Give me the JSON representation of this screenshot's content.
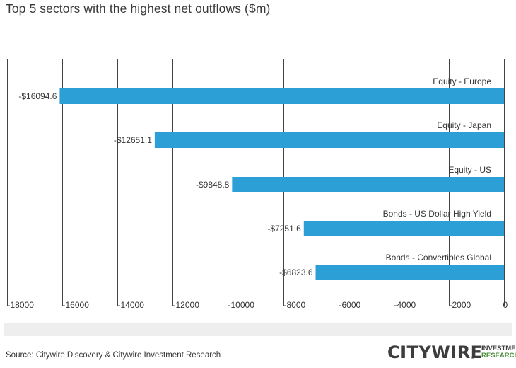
{
  "title": "Top 5 sectors with the highest net outflows ($m)",
  "source": "Source: Citywire Discovery & Citywire Investment Research",
  "logo": {
    "brand": "CITYWIRE",
    "sub_line1": "INVESTMENT",
    "sub_line2": "RESEARCH"
  },
  "colors": {
    "bar": "#2b9fd6",
    "gridline": "#444444",
    "text": "#333333"
  },
  "chart_data": {
    "type": "bar",
    "orientation": "horizontal",
    "title": "Top 5 sectors with the highest net outflows ($m)",
    "categories": [
      "Equity - Europe",
      "Equity - Japan",
      "Equity - US",
      "Bonds - US Dollar High Yield",
      "Bonds - Convertibles Global"
    ],
    "values": [
      -16094.6,
      -12651.1,
      -9848.8,
      -7251.6,
      -6823.6
    ],
    "data_labels": [
      "-$16094.6",
      "-$12651.1",
      "-$9848.8",
      "-$7251.6",
      "-$6823.6"
    ],
    "xlim": [
      -18000,
      0
    ],
    "xticks": [
      -18000,
      -16000,
      -14000,
      -12000,
      -10000,
      -8000,
      -6000,
      -4000,
      -2000,
      0
    ],
    "grid": true,
    "legend": "none"
  }
}
